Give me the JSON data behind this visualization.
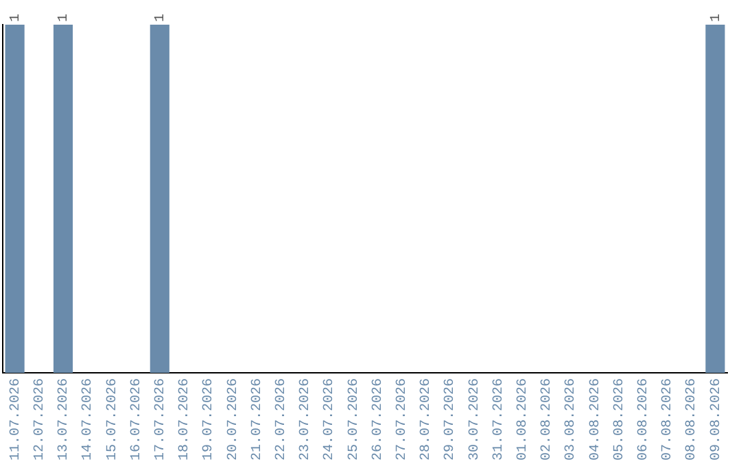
{
  "chart_data": {
    "type": "bar",
    "ylim": [
      0,
      1
    ],
    "tick_labels": "x",
    "categories": [
      "11.07.2026",
      "12.07.2026",
      "13.07.2026",
      "14.07.2026",
      "15.07.2026",
      "16.07.2026",
      "17.07.2026",
      "18.07.2026",
      "19.07.2026",
      "20.07.2026",
      "21.07.2026",
      "22.07.2026",
      "23.07.2026",
      "24.07.2026",
      "25.07.2026",
      "26.07.2026",
      "27.07.2026",
      "28.07.2026",
      "29.07.2026",
      "30.07.2026",
      "31.07.2026",
      "01.08.2026",
      "02.08.2026",
      "03.08.2026",
      "04.08.2026",
      "05.08.2026",
      "06.08.2026",
      "07.08.2026",
      "08.08.2026",
      "09.08.2026"
    ],
    "values": [
      1,
      0,
      1,
      0,
      0,
      0,
      1,
      0,
      0,
      0,
      0,
      0,
      0,
      0,
      0,
      0,
      0,
      0,
      0,
      0,
      0,
      0,
      0,
      0,
      0,
      0,
      0,
      0,
      0,
      1
    ],
    "value_labels": [
      "1",
      null,
      "1",
      null,
      null,
      null,
      "1",
      null,
      null,
      null,
      null,
      null,
      null,
      null,
      null,
      null,
      null,
      null,
      null,
      null,
      null,
      null,
      null,
      null,
      null,
      null,
      null,
      null,
      null,
      "1"
    ],
    "color": "#6a8bab",
    "grid": false,
    "legend": false
  }
}
